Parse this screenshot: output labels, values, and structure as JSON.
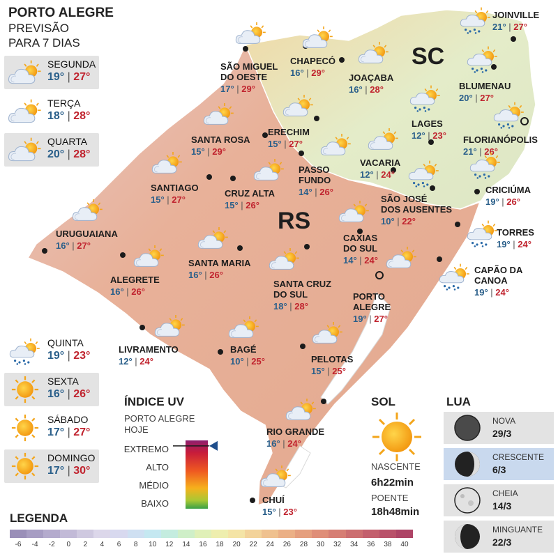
{
  "title": {
    "line1": "PORTO ALEGRE",
    "line2": "PREVISÃO",
    "line3": "PARA 7 DIAS"
  },
  "days": [
    {
      "name": "SEGUNDA",
      "min": "19°",
      "max": "27°",
      "icon": "partly-cloudy-icon",
      "boxed": true
    },
    {
      "name": "TERÇA",
      "min": "18°",
      "max": "28°",
      "icon": "partly-cloudy-icon",
      "boxed": false
    },
    {
      "name": "QUARTA",
      "min": "20°",
      "max": "28°",
      "icon": "partly-cloudy-icon",
      "boxed": true
    },
    {
      "name": "QUINTA",
      "min": "19°",
      "max": "23°",
      "icon": "sun-cloud-rain-icon",
      "boxed": false
    },
    {
      "name": "SEXTA",
      "min": "16°",
      "max": "26°",
      "icon": "sun-icon",
      "boxed": true
    },
    {
      "name": "SÁBADO",
      "min": "17°",
      "max": "27°",
      "icon": "sun-icon",
      "boxed": false
    },
    {
      "name": "DOMINGO",
      "min": "17°",
      "max": "30°",
      "icon": "sun-icon",
      "boxed": true
    }
  ],
  "states": {
    "rs": "RS",
    "sc": "SC"
  },
  "cities": [
    {
      "name": "JOINVILLE",
      "min": "21°",
      "max": "27°"
    },
    {
      "name": "BLUMENAU",
      "min": "20°",
      "max": "27°"
    },
    {
      "name": "FLORIANÓPOLIS",
      "min": "21°",
      "max": "26°"
    },
    {
      "name": "LAGES",
      "min": "12°",
      "max": "23°"
    },
    {
      "name": "JOAÇABA",
      "min": "16°",
      "max": "28°"
    },
    {
      "name": "CHAPECÓ",
      "min": "16°",
      "max": "29°"
    },
    {
      "name": "SÃO MIGUEL DO OESTE",
      "line1": "SÃO MIGUEL",
      "line2": "DO OESTE",
      "min": "17°",
      "max": "29°"
    },
    {
      "name": "SANTA ROSA",
      "min": "15°",
      "max": "29°"
    },
    {
      "name": "ERECHIM",
      "min": "15°",
      "max": "27°"
    },
    {
      "name": "VACARIA",
      "min": "12°",
      "max": "24°"
    },
    {
      "name": "PASSO FUNDO",
      "line1": "PASSO",
      "line2": "FUNDO",
      "min": "14°",
      "max": "26°"
    },
    {
      "name": "CRICIÚMA",
      "min": "19°",
      "max": "26°"
    },
    {
      "name": "SÃO JOSÉ DOS AUSENTES",
      "line1": "SÃO JOSÉ",
      "line2": "DOS AUSENTES",
      "min": "10°",
      "max": "22°"
    },
    {
      "name": "SANTIAGO",
      "min": "15°",
      "max": "27°"
    },
    {
      "name": "CRUZ ALTA",
      "min": "15°",
      "max": "26°"
    },
    {
      "name": "URUGUAIANA",
      "min": "16°",
      "max": "27°"
    },
    {
      "name": "TORRES",
      "min": "19°",
      "max": "24°"
    },
    {
      "name": "CAXIAS DO SUL",
      "line1": "CAXIAS",
      "line2": "DO SUL",
      "min": "14°",
      "max": "24°"
    },
    {
      "name": "SANTA MARIA",
      "min": "16°",
      "max": "26°"
    },
    {
      "name": "ALEGRETE",
      "min": "16°",
      "max": "26°"
    },
    {
      "name": "CAPÃO DA CANOA",
      "line1": "CAPÃO DA",
      "line2": "CANOA",
      "min": "19°",
      "max": "24°"
    },
    {
      "name": "SANTA CRUZ DO SUL",
      "line1": "SANTA CRUZ",
      "line2": "DO SUL",
      "min": "18°",
      "max": "28°"
    },
    {
      "name": "PORTO ALEGRE",
      "line1": "PORTO",
      "line2": "ALEGRE",
      "min": "19°",
      "max": "27°"
    },
    {
      "name": "LIVRAMENTO",
      "min": "12°",
      "max": "24°"
    },
    {
      "name": "BAGÉ",
      "min": "10°",
      "max": "25°"
    },
    {
      "name": "PELOTAS",
      "min": "15°",
      "max": "25°"
    },
    {
      "name": "RIO GRANDE",
      "min": "16°",
      "max": "24°"
    },
    {
      "name": "CHUÍ",
      "min": "15°",
      "max": "23°"
    }
  ],
  "uv": {
    "title": "ÍNDICE UV",
    "subtitle_line1": "PORTO ALEGRE",
    "subtitle_line2": "HOJE",
    "levels": [
      "EXTREMO",
      "ALTO",
      "MÉDIO",
      "BAIXO"
    ],
    "current_level": "EXTREMO",
    "indicator_level": 0.92
  },
  "sol": {
    "title": "SOL",
    "sunrise_label": "NASCENTE",
    "sunrise": "6h22min",
    "sunset_label": "POENTE",
    "sunset": "18h48min"
  },
  "lua": {
    "title": "LUA",
    "phases": [
      {
        "name": "NOVA",
        "date": "29/3",
        "highlight": false,
        "icon": "new-moon-icon"
      },
      {
        "name": "CRESCENTE",
        "date": "6/3",
        "highlight": true,
        "icon": "waxing-moon-icon"
      },
      {
        "name": "CHEIA",
        "date": "14/3",
        "highlight": false,
        "icon": "full-moon-icon"
      },
      {
        "name": "MINGUANTE",
        "date": "22/3",
        "highlight": false,
        "icon": "waning-moon-icon"
      }
    ]
  },
  "legend": {
    "title": "LEGENDA",
    "ticks": [
      "-6",
      "-4",
      "-2",
      "0",
      "2",
      "4",
      "6",
      "8",
      "10",
      "12",
      "14",
      "16",
      "18",
      "20",
      "22",
      "24",
      "26",
      "28",
      "30",
      "32",
      "34",
      "36",
      "38",
      "40"
    ],
    "colors": [
      "#9a8fb8",
      "#a79dc3",
      "#b4abcd",
      "#c2bad7",
      "#cfc9e0",
      "#dcd7ea",
      "#d8d9ef",
      "#cfe0f2",
      "#c5e8f1",
      "#c4ecdf",
      "#cfefc8",
      "#e0f0b8",
      "#eeeeae",
      "#f4e4a6",
      "#f3d39a",
      "#efc18f",
      "#ebb086",
      "#e59f7e",
      "#df8e78",
      "#d67e74",
      "#cc6e70",
      "#c35f6d",
      "#b9516a",
      "#ae4466"
    ]
  },
  "colors": {
    "tmin": "#2a5f8a",
    "tmax": "#c0232e",
    "rs_fill": "#e8b199",
    "sc_fill": "#e9efcf"
  }
}
